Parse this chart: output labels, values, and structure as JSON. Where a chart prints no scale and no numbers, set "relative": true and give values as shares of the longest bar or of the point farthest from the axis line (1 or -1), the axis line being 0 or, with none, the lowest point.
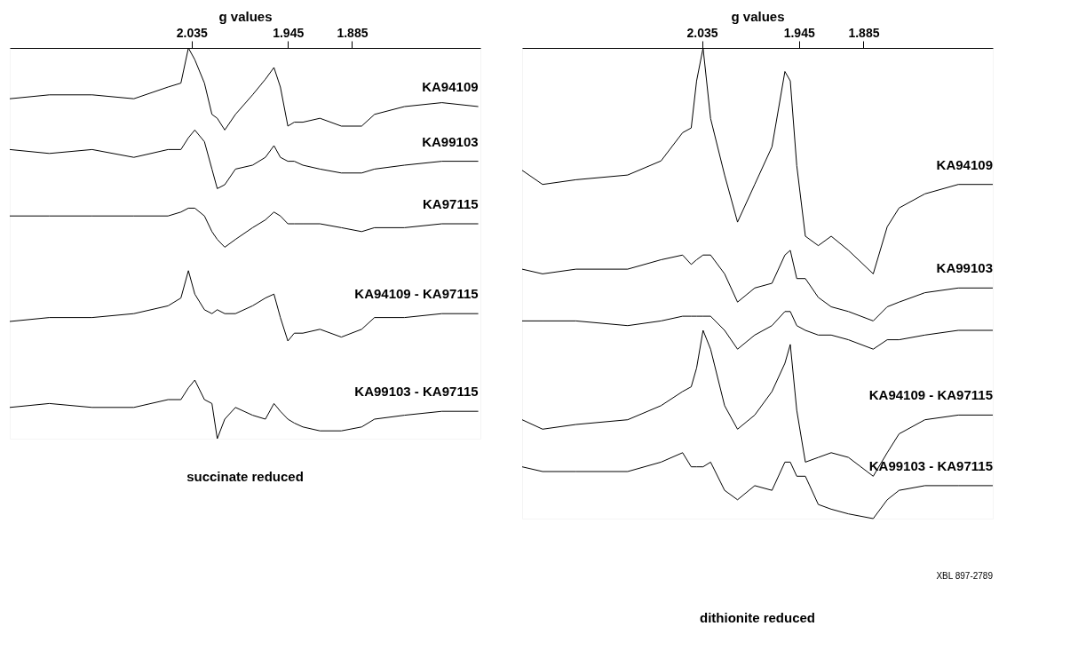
{
  "chart_data": [
    {
      "type": "line",
      "relative": true,
      "title": "succinate reduced",
      "xlabel": "g values",
      "xlim": [
        2.205,
        1.765
      ],
      "xticks": [
        2.035,
        1.945,
        1.885
      ],
      "tick_labels": "x",
      "grid": false,
      "legend": false,
      "x": [
        2.205,
        2.168,
        2.128,
        2.089,
        2.057,
        2.045,
        2.038,
        2.032,
        2.023,
        2.016,
        2.011,
        2.004,
        1.994,
        1.978,
        1.966,
        1.958,
        1.952,
        1.945,
        1.939,
        1.931,
        1.915,
        1.895,
        1.876,
        1.864,
        1.836,
        1.801,
        1.767
      ],
      "series": [
        {
          "name": "KA94109",
          "color": "#000000",
          "values": [
            0.87,
            0.88,
            0.88,
            0.87,
            0.9,
            0.91,
            1.0,
            0.97,
            0.91,
            0.83,
            0.82,
            0.79,
            0.83,
            0.88,
            0.92,
            0.95,
            0.9,
            0.8,
            0.81,
            0.81,
            0.82,
            0.8,
            0.8,
            0.83,
            0.85,
            0.86,
            0.85
          ]
        },
        {
          "name": "KA99103",
          "color": "#000000",
          "values": [
            0.74,
            0.73,
            0.74,
            0.72,
            0.74,
            0.74,
            0.77,
            0.79,
            0.76,
            0.69,
            0.64,
            0.65,
            0.69,
            0.7,
            0.72,
            0.75,
            0.72,
            0.71,
            0.71,
            0.7,
            0.69,
            0.68,
            0.68,
            0.69,
            0.7,
            0.71,
            0.71
          ]
        },
        {
          "name": "KA97115",
          "color": "#000000",
          "values": [
            0.57,
            0.57,
            0.57,
            0.57,
            0.57,
            0.58,
            0.59,
            0.59,
            0.57,
            0.53,
            0.51,
            0.49,
            0.51,
            0.54,
            0.56,
            0.58,
            0.57,
            0.55,
            0.55,
            0.55,
            0.55,
            0.54,
            0.53,
            0.54,
            0.54,
            0.55,
            0.55
          ]
        },
        {
          "name": "KA94109 - KA97115",
          "color": "#000000",
          "values": [
            0.3,
            0.31,
            0.31,
            0.32,
            0.34,
            0.36,
            0.43,
            0.37,
            0.33,
            0.32,
            0.33,
            0.32,
            0.32,
            0.34,
            0.36,
            0.37,
            0.31,
            0.25,
            0.27,
            0.27,
            0.28,
            0.26,
            0.28,
            0.31,
            0.31,
            0.32,
            0.32
          ]
        },
        {
          "name": "KA99103 - KA97115",
          "color": "#000000",
          "values": [
            0.08,
            0.09,
            0.08,
            0.08,
            0.1,
            0.1,
            0.13,
            0.15,
            0.1,
            0.09,
            0.0,
            0.05,
            0.08,
            0.06,
            0.05,
            0.09,
            0.07,
            0.05,
            0.04,
            0.03,
            0.02,
            0.02,
            0.03,
            0.05,
            0.06,
            0.07,
            0.07
          ]
        }
      ]
    },
    {
      "type": "line",
      "relative": true,
      "title": "dithionite reduced",
      "xlabel": "g values",
      "xlim": [
        2.202,
        1.765
      ],
      "xticks": [
        2.035,
        1.945,
        1.885
      ],
      "tick_labels": "x",
      "grid": false,
      "legend": false,
      "annotations": [
        "XBL 897-2789"
      ],
      "x": [
        2.202,
        2.183,
        2.152,
        2.104,
        2.073,
        2.053,
        2.045,
        2.04,
        2.034,
        2.027,
        2.014,
        2.002,
        1.986,
        1.97,
        1.958,
        1.953,
        1.947,
        1.939,
        1.927,
        1.915,
        1.899,
        1.876,
        1.863,
        1.852,
        1.828,
        1.797,
        1.765
      ],
      "series": [
        {
          "name": "KA94109",
          "color": "#000000",
          "values": [
            0.74,
            0.71,
            0.72,
            0.73,
            0.76,
            0.82,
            0.83,
            0.93,
            1.0,
            0.85,
            0.73,
            0.63,
            0.71,
            0.79,
            0.95,
            0.93,
            0.75,
            0.6,
            0.58,
            0.6,
            0.57,
            0.52,
            0.62,
            0.66,
            0.69,
            0.71,
            0.71
          ]
        },
        {
          "name": "KA99103",
          "color": "#000000",
          "values": [
            0.53,
            0.52,
            0.53,
            0.53,
            0.55,
            0.56,
            0.54,
            0.55,
            0.56,
            0.56,
            0.52,
            0.46,
            0.49,
            0.5,
            0.56,
            0.57,
            0.51,
            0.51,
            0.47,
            0.45,
            0.44,
            0.42,
            0.45,
            0.46,
            0.48,
            0.49,
            0.49
          ]
        },
        {
          "color": "#000000",
          "values": [
            0.42,
            0.42,
            0.42,
            0.41,
            0.42,
            0.43,
            0.43,
            0.43,
            0.43,
            0.43,
            0.4,
            0.36,
            0.39,
            0.41,
            0.44,
            0.44,
            0.41,
            0.4,
            0.39,
            0.39,
            0.38,
            0.36,
            0.38,
            0.38,
            0.39,
            0.4,
            0.4
          ]
        },
        {
          "name": "KA94109 - KA97115",
          "color": "#000000",
          "values": [
            0.21,
            0.19,
            0.2,
            0.21,
            0.24,
            0.27,
            0.28,
            0.32,
            0.4,
            0.36,
            0.24,
            0.19,
            0.22,
            0.27,
            0.33,
            0.37,
            0.23,
            0.12,
            0.13,
            0.14,
            0.13,
            0.09,
            0.14,
            0.18,
            0.21,
            0.22,
            0.22
          ]
        },
        {
          "name": "KA99103 - KA97115",
          "color": "#000000",
          "values": [
            0.11,
            0.1,
            0.1,
            0.1,
            0.12,
            0.14,
            0.11,
            0.11,
            0.11,
            0.12,
            0.06,
            0.04,
            0.07,
            0.06,
            0.12,
            0.12,
            0.09,
            0.09,
            0.03,
            0.02,
            0.01,
            0.0,
            0.04,
            0.06,
            0.07,
            0.07,
            0.07
          ]
        }
      ]
    }
  ]
}
